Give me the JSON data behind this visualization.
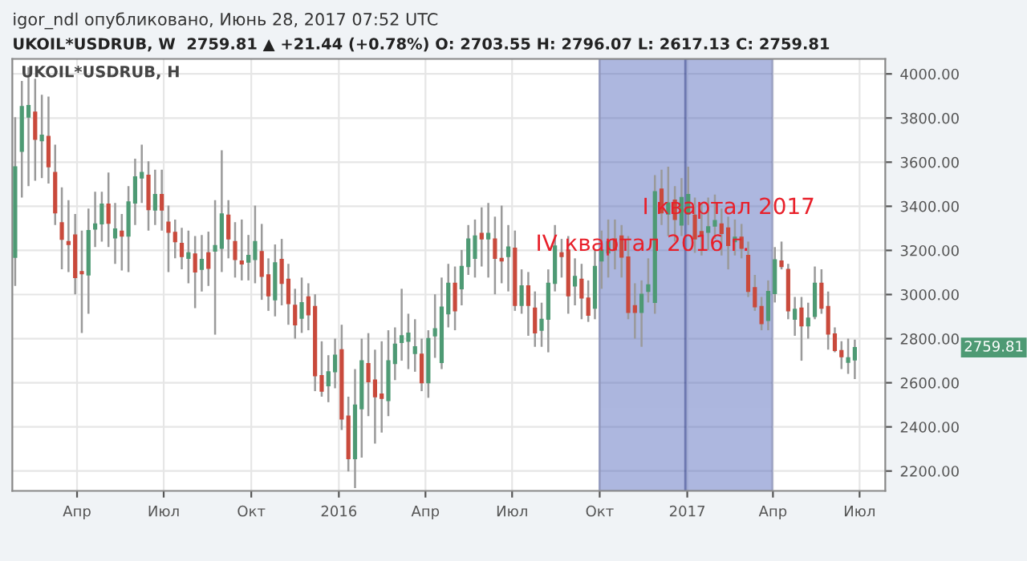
{
  "chart_data": {
    "type": "candlestick",
    "title": "igor_ndl опубликовано, Июнь 28, 2017 07:52 UTC",
    "subtitle": "UKOIL*USDRUB, W  2759.81 ▲ +21.44 (+0.78%) O: 2703.55 H: 2796.07 L: 2617.13 C: 2759.81",
    "annotations": [
      "UKOIL*USDRUB, H",
      "2759.81"
    ],
    "x": [
      "2015-01-26",
      "2015-02-02",
      "2015-02-09",
      "2015-02-16",
      "2015-02-23",
      "2015-03-02",
      "2015-03-09",
      "2015-03-16",
      "2015-03-23",
      "2015-03-30",
      "2015-04-06",
      "2015-04-13",
      "2015-04-20",
      "2015-04-27",
      "2015-05-04",
      "2015-05-11",
      "2015-05-18",
      "2015-05-25",
      "2015-06-01",
      "2015-06-08",
      "2015-06-15",
      "2015-06-22",
      "2015-06-29",
      "2015-07-06",
      "2015-07-13",
      "2015-07-20",
      "2015-07-27",
      "2015-08-03",
      "2015-08-10",
      "2015-08-17",
      "2015-08-24",
      "2015-08-31",
      "2015-09-07",
      "2015-09-14",
      "2015-09-21",
      "2015-09-28",
      "2015-10-05",
      "2015-10-12",
      "2015-10-19",
      "2015-10-26",
      "2015-11-02",
      "2015-11-09",
      "2015-11-16",
      "2015-11-23",
      "2015-11-30",
      "2015-12-07",
      "2015-12-14",
      "2015-12-21",
      "2015-12-28",
      "2016-01-04",
      "2016-01-11",
      "2016-01-18",
      "2016-01-25",
      "2016-02-01",
      "2016-02-08",
      "2016-02-15",
      "2016-02-22",
      "2016-02-29",
      "2016-03-07",
      "2016-03-14",
      "2016-03-21",
      "2016-03-28",
      "2016-04-04",
      "2016-04-11",
      "2016-04-18",
      "2016-04-25",
      "2016-05-02",
      "2016-05-09",
      "2016-05-16",
      "2016-05-23",
      "2016-05-30",
      "2016-06-06",
      "2016-06-13",
      "2016-06-20",
      "2016-06-27",
      "2016-07-04",
      "2016-07-11",
      "2016-07-18",
      "2016-07-25",
      "2016-08-01",
      "2016-08-08",
      "2016-08-15",
      "2016-08-22",
      "2016-08-29",
      "2016-09-05",
      "2016-09-12",
      "2016-09-19",
      "2016-09-26",
      "2016-10-03",
      "2016-10-10",
      "2016-10-17",
      "2016-10-24",
      "2016-10-31",
      "2016-11-07",
      "2016-11-14",
      "2016-11-21",
      "2016-11-28",
      "2016-12-05",
      "2016-12-12",
      "2016-12-19",
      "2016-12-26",
      "2017-01-02",
      "2017-01-09",
      "2017-01-16",
      "2017-01-23",
      "2017-01-30",
      "2017-02-06",
      "2017-02-13",
      "2017-02-20",
      "2017-02-27",
      "2017-03-06",
      "2017-03-13",
      "2017-03-20",
      "2017-03-27",
      "2017-04-03",
      "2017-04-10",
      "2017-04-17",
      "2017-04-24",
      "2017-05-01",
      "2017-05-08",
      "2017-05-15",
      "2017-05-22",
      "2017-05-29",
      "2017-06-05",
      "2017-06-12",
      "2017-06-19",
      "2017-06-26"
    ],
    "colors": [
      "#4e9a74",
      "#4e9a74",
      "#4e9a74",
      "#c94a3c",
      "#4e9a74",
      "#c94a3c",
      "#c94a3c",
      "#c94a3c",
      "#c94a3c",
      "#c94a3c",
      "#c94a3c",
      "#4e9a74",
      "#4e9a74",
      "#4e9a74",
      "#c94a3c",
      "#4e9a74",
      "#c94a3c",
      "#4e9a74",
      "#4e9a74",
      "#4e9a74",
      "#c94a3c",
      "#4e9a74",
      "#c94a3c",
      "#c94a3c",
      "#c94a3c",
      "#c94a3c",
      "#4e9a74",
      "#c94a3c",
      "#4e9a74",
      "#c94a3c",
      "#4e9a74",
      "#4e9a74",
      "#c94a3c",
      "#c94a3c",
      "#c94a3c",
      "#4e9a74",
      "#4e9a74",
      "#c94a3c",
      "#c94a3c",
      "#4e9a74",
      "#c94a3c",
      "#c94a3c",
      "#c94a3c",
      "#4e9a74",
      "#c94a3c",
      "#c94a3c",
      "#c94a3c",
      "#4e9a74",
      "#4e9a74",
      "#c94a3c",
      "#c94a3c",
      "#4e9a74",
      "#4e9a74",
      "#c94a3c",
      "#c94a3c",
      "#c94a3c",
      "#4e9a74",
      "#4e9a74",
      "#4e9a74",
      "#4e9a74",
      "#4e9a74",
      "#c94a3c",
      "#4e9a74",
      "#4e9a74",
      "#4e9a74",
      "#4e9a74",
      "#c94a3c",
      "#4e9a74",
      "#4e9a74",
      "#4e9a74",
      "#c94a3c",
      "#4e9a74",
      "#c94a3c",
      "#c94a3c",
      "#4e9a74",
      "#c94a3c",
      "#4e9a74",
      "#c94a3c",
      "#c94a3c",
      "#4e9a74",
      "#4e9a74",
      "#4e9a74",
      "#c94a3c",
      "#c94a3c",
      "#4e9a74",
      "#c94a3c",
      "#c94a3c",
      "#4e9a74",
      "#4e9a74",
      "#4e9a74",
      "#c94a3c",
      "#c94a3c",
      "#c94a3c",
      "#c94a3c",
      "#4e9a74",
      "#4e9a74",
      "#4e9a74",
      "#c94a3c",
      "#4e9a74",
      "#c94a3c",
      "#4e9a74",
      "#4e9a74",
      "#c94a3c",
      "#c94a3c",
      "#4e9a74",
      "#4e9a74",
      "#c94a3c",
      "#c94a3c",
      "#4e9a74",
      "#c94a3c",
      "#c94a3c",
      "#c94a3c",
      "#c94a3c",
      "#4e9a74",
      "#4e9a74",
      "#c94a3c",
      "#c94a3c",
      "#4e9a74",
      "#c94a3c",
      "#4e9a74",
      "#4e9a74",
      "#c94a3c",
      "#c94a3c",
      "#c94a3c",
      "#c94a3c",
      "#4e9a74",
      "#4e9a74"
    ],
    "ohlc": [
      [
        3169,
        3804,
        3039,
        3579
      ],
      [
        3649,
        3968,
        3440,
        3852
      ],
      [
        3804,
        4030,
        3491,
        3857
      ],
      [
        3827,
        3978,
        3516,
        3704
      ],
      [
        3697,
        3905,
        3528,
        3722
      ],
      [
        3717,
        3897,
        3503,
        3579
      ],
      [
        3553,
        3679,
        3315,
        3370
      ],
      [
        3325,
        3486,
        3114,
        3250
      ],
      [
        3240,
        3428,
        3102,
        3227
      ],
      [
        3270,
        3365,
        3001,
        3077
      ],
      [
        3104,
        3290,
        2826,
        3094
      ],
      [
        3089,
        3390,
        2913,
        3290
      ],
      [
        3297,
        3466,
        3215,
        3320
      ],
      [
        3320,
        3466,
        3240,
        3410
      ],
      [
        3410,
        3553,
        3215,
        3323
      ],
      [
        3257,
        3415,
        3139,
        3297
      ],
      [
        3287,
        3365,
        3109,
        3265
      ],
      [
        3265,
        3491,
        3102,
        3420
      ],
      [
        3415,
        3616,
        3315,
        3533
      ],
      [
        3528,
        3679,
        3415,
        3553
      ],
      [
        3541,
        3604,
        3290,
        3385
      ],
      [
        3383,
        3566,
        3315,
        3453
      ],
      [
        3453,
        3566,
        3290,
        3383
      ],
      [
        3328,
        3403,
        3102,
        3282
      ],
      [
        3282,
        3340,
        3164,
        3240
      ],
      [
        3232,
        3302,
        3114,
        3172
      ],
      [
        3164,
        3290,
        3051,
        3189
      ],
      [
        3184,
        3265,
        2938,
        3102
      ],
      [
        3114,
        3270,
        3014,
        3159
      ],
      [
        3189,
        3285,
        3039,
        3119
      ],
      [
        3197,
        3428,
        2818,
        3222
      ],
      [
        3210,
        3654,
        3102,
        3365
      ],
      [
        3360,
        3428,
        3164,
        3252
      ],
      [
        3240,
        3328,
        3077,
        3159
      ],
      [
        3152,
        3340,
        3064,
        3139
      ],
      [
        3147,
        3270,
        3064,
        3177
      ],
      [
        3159,
        3403,
        3051,
        3240
      ],
      [
        3195,
        3320,
        2976,
        3082
      ],
      [
        3089,
        3164,
        2926,
        2994
      ],
      [
        2976,
        3227,
        2901,
        3144
      ],
      [
        3159,
        3252,
        2951,
        3051
      ],
      [
        3069,
        3139,
        2863,
        2959
      ],
      [
        2951,
        3026,
        2800,
        2863
      ],
      [
        2893,
        3077,
        2826,
        2963
      ],
      [
        2989,
        3051,
        2838,
        2908
      ],
      [
        2946,
        3001,
        2562,
        2632
      ],
      [
        2632,
        2788,
        2537,
        2562
      ],
      [
        2587,
        2725,
        2512,
        2650
      ],
      [
        2650,
        2800,
        2575,
        2725
      ],
      [
        2750,
        2863,
        2386,
        2436
      ],
      [
        2449,
        2537,
        2198,
        2256
      ],
      [
        2256,
        2662,
        2123,
        2499
      ],
      [
        2482,
        2800,
        2261,
        2700
      ],
      [
        2687,
        2825,
        2449,
        2605
      ],
      [
        2612,
        2750,
        2324,
        2537
      ],
      [
        2549,
        2788,
        2374,
        2529
      ],
      [
        2519,
        2838,
        2449,
        2700
      ],
      [
        2687,
        2851,
        2612,
        2775
      ],
      [
        2783,
        3026,
        2700,
        2813
      ],
      [
        2788,
        2913,
        2662,
        2825
      ],
      [
        2733,
        2888,
        2650,
        2763
      ],
      [
        2730,
        2800,
        2562,
        2600
      ],
      [
        2600,
        2838,
        2532,
        2800
      ],
      [
        2813,
        3001,
        2713,
        2845
      ],
      [
        2692,
        3077,
        2662,
        2943
      ],
      [
        2913,
        3139,
        2851,
        3051
      ],
      [
        3051,
        3127,
        2838,
        2926
      ],
      [
        3026,
        3202,
        2951,
        3127
      ],
      [
        3127,
        3315,
        3089,
        3252
      ],
      [
        3164,
        3340,
        3077,
        3265
      ],
      [
        3277,
        3395,
        3127,
        3252
      ],
      [
        3252,
        3415,
        3077,
        3277
      ],
      [
        3252,
        3353,
        3001,
        3164
      ],
      [
        3164,
        3403,
        3051,
        3152
      ],
      [
        3172,
        3315,
        3014,
        3215
      ],
      [
        3210,
        3290,
        2926,
        2951
      ],
      [
        2951,
        3114,
        2913,
        3039
      ],
      [
        3039,
        3102,
        2813,
        2951
      ],
      [
        2938,
        3014,
        2763,
        2826
      ],
      [
        2838,
        2963,
        2763,
        2888
      ],
      [
        2888,
        3114,
        2738,
        3051
      ],
      [
        3051,
        3315,
        3014,
        3220
      ],
      [
        3189,
        3252,
        3077,
        3172
      ],
      [
        3202,
        3265,
        2913,
        2994
      ],
      [
        3039,
        3164,
        2951,
        3082
      ],
      [
        3069,
        3139,
        2888,
        2984
      ],
      [
        2984,
        3064,
        2876,
        2906
      ],
      [
        2938,
        3202,
        2888,
        3127
      ],
      [
        3152,
        3290,
        3026,
        3202
      ],
      [
        3189,
        3340,
        3077,
        3240
      ],
      [
        3252,
        3340,
        3114,
        3202
      ],
      [
        3265,
        3315,
        3077,
        3170
      ],
      [
        3170,
        3265,
        2888,
        2919
      ],
      [
        2949,
        3051,
        2800,
        2919
      ],
      [
        2919,
        3064,
        2763,
        3001
      ],
      [
        3014,
        3164,
        2964,
        3044
      ],
      [
        2964,
        3541,
        2913,
        3466
      ],
      [
        3478,
        3566,
        3315,
        3370
      ],
      [
        3365,
        3579,
        3265,
        3415
      ],
      [
        3428,
        3491,
        3240,
        3340
      ],
      [
        3315,
        3528,
        3265,
        3440
      ],
      [
        3365,
        3579,
        3315,
        3453
      ],
      [
        3360,
        3440,
        3189,
        3252
      ],
      [
        3285,
        3415,
        3177,
        3270
      ],
      [
        3282,
        3440,
        3202,
        3307
      ],
      [
        3310,
        3453,
        3252,
        3335
      ],
      [
        3320,
        3390,
        3177,
        3277
      ],
      [
        3302,
        3353,
        3114,
        3222
      ],
      [
        3240,
        3340,
        3177,
        3260
      ],
      [
        3260,
        3320,
        3164,
        3210
      ],
      [
        3177,
        3240,
        2989,
        3014
      ],
      [
        3031,
        3089,
        2926,
        2944
      ],
      [
        2946,
        2989,
        2838,
        2868
      ],
      [
        2883,
        3064,
        2838,
        3014
      ],
      [
        3004,
        3215,
        2964,
        3157
      ],
      [
        3152,
        3240,
        3114,
        3127
      ],
      [
        3114,
        3139,
        2888,
        2926
      ],
      [
        2888,
        2989,
        2813,
        2933
      ],
      [
        2938,
        2989,
        2700,
        2858
      ],
      [
        2858,
        2963,
        2800,
        2893
      ],
      [
        2901,
        3127,
        2888,
        3051
      ],
      [
        3051,
        3114,
        2913,
        2938
      ],
      [
        2946,
        3014,
        2750,
        2821
      ],
      [
        2821,
        2851,
        2738,
        2746
      ],
      [
        2746,
        2788,
        2662,
        2718
      ],
      [
        2693,
        2800,
        2640,
        2713
      ],
      [
        2703.55,
        2796.07,
        2617.13,
        2759.81
      ]
    ],
    "xlim": [
      "2015-01-23",
      "2017-07-28"
    ],
    "xticks": [
      {
        "value": "2015-04-01",
        "label": "Апр"
      },
      {
        "value": "2015-07-01",
        "label": "Июл"
      },
      {
        "value": "2015-10-01",
        "label": "Окт"
      },
      {
        "value": "2016-01-01",
        "label": "2016"
      },
      {
        "value": "2016-04-01",
        "label": "Апр"
      },
      {
        "value": "2016-07-01",
        "label": "Июл"
      },
      {
        "value": "2016-10-01",
        "label": "Окт"
      },
      {
        "value": "2017-01-01",
        "label": "2017"
      },
      {
        "value": "2017-04-01",
        "label": "Апр"
      },
      {
        "value": "2017-07-01",
        "label": "Июл"
      }
    ],
    "ylim": [
      2110,
      4068
    ],
    "yticks": [
      {
        "value": 2200,
        "label": "2200.00"
      },
      {
        "value": 2400,
        "label": "2400.00"
      },
      {
        "value": 2600,
        "label": "2600.00"
      },
      {
        "value": 2800,
        "label": "2800.00"
      },
      {
        "value": 3000,
        "label": "3000.00"
      },
      {
        "value": 3200,
        "label": "3200.00"
      },
      {
        "value": 3400,
        "label": "3400.00"
      },
      {
        "value": 3600,
        "label": "3600.00"
      },
      {
        "value": 3800,
        "label": "3800.00"
      },
      {
        "value": 4000,
        "label": "4000.00"
      }
    ],
    "bands": [
      {
        "axis": "x",
        "from": "2016-10-01",
        "to": "2016-12-30",
        "color": "#4a60b8",
        "label": "IV квартал 2016 г."
      },
      {
        "axis": "x",
        "from": "2016-12-30",
        "to": "2017-03-31",
        "color": "#4a60b8",
        "label": "I квартал 2017"
      }
    ],
    "grid": true
  }
}
